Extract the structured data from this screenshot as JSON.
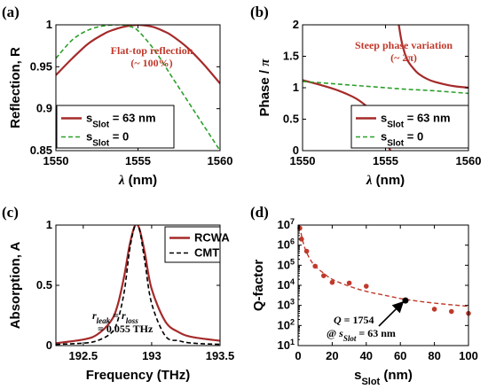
{
  "chart_data": [
    {
      "type": "line",
      "panel": "(a)",
      "xlabel_sym": "λ",
      "xlabel_unit": " (nm)",
      "ylabel": "Reflection, R",
      "xlim": [
        1550,
        1560
      ],
      "ylim": [
        0.85,
        1.0
      ],
      "xticks": [
        "1550",
        "1555",
        "1560"
      ],
      "yticks": [
        "0.85",
        "0.9",
        "0.95",
        "1"
      ],
      "annotation_lines": [
        "Flat-top reflection",
        "(~ 100%)"
      ],
      "legend": {
        "placement": "bottom-left"
      },
      "series": [
        {
          "name_main": "s",
          "name_sub": "Slot",
          "name_val": " = 63 nm",
          "color": "#a52a2a",
          "style": "solid",
          "x": [
            1550,
            1551,
            1552,
            1553,
            1553.5,
            1554,
            1554.5,
            1555,
            1555.5,
            1556,
            1556.5,
            1557,
            1558,
            1559,
            1560
          ],
          "y": [
            0.94,
            0.96,
            0.978,
            0.99,
            0.994,
            0.997,
            0.999,
            1.0,
            0.999,
            0.997,
            0.993,
            0.988,
            0.973,
            0.953,
            0.93
          ]
        },
        {
          "name_main": "s",
          "name_sub": "Slot",
          "name_val": " = 0",
          "color": "#2ca02c",
          "style": "dashed",
          "x": [
            1550,
            1551,
            1552,
            1553,
            1554,
            1554.5,
            1555,
            1556,
            1557,
            1558,
            1559,
            1560
          ],
          "y": [
            0.96,
            0.982,
            0.994,
            0.999,
            1.0,
            0.998,
            0.993,
            0.97,
            0.94,
            0.91,
            0.88,
            0.85
          ]
        }
      ]
    },
    {
      "type": "line",
      "panel": "(b)",
      "xlabel_sym": "λ",
      "xlabel_unit": " (nm)",
      "ylabel_main": "Phase / ",
      "ylabel_sym": "π",
      "xlim": [
        1550,
        1560
      ],
      "ylim": [
        0,
        2
      ],
      "xticks": [
        "1550",
        "1555",
        "1560"
      ],
      "yticks": [
        "0",
        "0.5",
        "1",
        "1.5",
        "2"
      ],
      "annotation_lines": [
        "Steep phase variation",
        "(~ 2π)"
      ],
      "legend": {
        "placement": "bottom-right"
      },
      "series": [
        {
          "name_main": "s",
          "name_sub": "Slot",
          "name_val": " = 63 nm",
          "color": "#a52a2a",
          "style": "solid",
          "x": [
            1550,
            1551,
            1552,
            1553,
            1553.5,
            1554,
            1554.5,
            1554.8,
            1555,
            1555.15,
            1555.3
          ],
          "y": [
            1.12,
            1.05,
            0.97,
            0.86,
            0.78,
            0.67,
            0.5,
            0.35,
            0.2,
            0.08,
            0.0
          ]
        },
        {
          "name_main": "s",
          "name_sub": "Slot",
          "name_val": "",
          "color": "#a52a2a",
          "style": "solid",
          "legend_hidden": true,
          "x": [
            1555.8,
            1556,
            1556.3,
            1556.7,
            1557,
            1557.5,
            1558,
            1559,
            1560
          ],
          "y": [
            2.0,
            1.7,
            1.45,
            1.3,
            1.22,
            1.14,
            1.09,
            1.03,
            1.0
          ]
        },
        {
          "name_main": "s",
          "name_sub": "Slot",
          "name_val": " = 0",
          "color": "#2ca02c",
          "style": "dashed",
          "x": [
            1550,
            1552,
            1554,
            1556,
            1558,
            1560
          ],
          "y": [
            1.1,
            1.06,
            1.02,
            0.98,
            0.95,
            0.91
          ]
        }
      ]
    },
    {
      "type": "line",
      "panel": "(c)",
      "xlabel": "Frequency (THz)",
      "ylabel": "Absorption, A",
      "xlim": [
        192.3,
        193.5
      ],
      "ylim": [
        0,
        1
      ],
      "xticks": [
        192.5,
        193,
        193.5
      ],
      "xticklabels": [
        "192.5",
        "193",
        "193.5"
      ],
      "yticks": [
        "0",
        "0.5",
        "1"
      ],
      "annotation_eq": {
        "r1": "r",
        "s1": "leak",
        "eq": " = ",
        "r2": "r",
        "s2": "loss"
      },
      "annotation_val": "= 0.055 THz",
      "legend": {
        "placement": "top-right"
      },
      "series": [
        {
          "name": "RCWA",
          "color": "#a52a2a",
          "style": "solid",
          "x": [
            192.3,
            192.5,
            192.6,
            192.7,
            192.75,
            192.8,
            192.84,
            192.88,
            192.91,
            192.95,
            193.0,
            193.1,
            193.2,
            193.3,
            193.5
          ],
          "y": [
            0.02,
            0.05,
            0.09,
            0.2,
            0.33,
            0.58,
            0.84,
            1.0,
            0.97,
            0.77,
            0.47,
            0.2,
            0.11,
            0.07,
            0.04
          ]
        },
        {
          "name": "CMT",
          "color": "#000000",
          "style": "dashed",
          "x": [
            192.3,
            192.5,
            192.6,
            192.7,
            192.75,
            192.8,
            192.84,
            192.88,
            192.91,
            192.95,
            193.0,
            193.1,
            193.2,
            193.3,
            193.5
          ],
          "y": [
            0.01,
            0.02,
            0.04,
            0.1,
            0.2,
            0.45,
            0.8,
            1.0,
            0.97,
            0.7,
            0.35,
            0.08,
            0.04,
            0.02,
            0.01
          ]
        }
      ]
    },
    {
      "type": "scatter",
      "panel": "(d)",
      "xlabel_main": "s",
      "xlabel_sub": "Slot",
      "xlabel_unit": " (nm)",
      "ylabel": "Q-factor",
      "xlim": [
        0,
        100
      ],
      "ylim_exp": [
        1,
        7
      ],
      "yscale": "log",
      "xticks": [
        "0",
        "20",
        "40",
        "60",
        "80",
        "100"
      ],
      "ytick_exps": [
        "1",
        "2",
        "3",
        "4",
        "5",
        "6",
        "7"
      ],
      "ytick_base": "10",
      "annotation_q": {
        "sym": "Q",
        "val": " = 1754"
      },
      "annotation_at": {
        "pre": "@ ",
        "sym": "s",
        "sub": "Slot",
        "post": " = 63 nm"
      },
      "highlight": {
        "x": 63,
        "y": 1754
      },
      "points": {
        "x": [
          1,
          2,
          5,
          10,
          15,
          20,
          30,
          40,
          63,
          80,
          90,
          100
        ],
        "y": [
          7000000,
          2000000,
          500000,
          90000,
          30000,
          14000,
          13000,
          9000,
          1754,
          650,
          500,
          400
        ],
        "color": "#c0392b"
      },
      "fit": {
        "x": [
          1,
          2,
          4,
          7,
          10,
          15,
          20,
          30,
          40,
          50,
          63,
          80,
          100
        ],
        "y": [
          9000000,
          3000000,
          700000,
          200000,
          90000,
          40000,
          20000,
          9000,
          5000,
          3300,
          2000,
          1300,
          900
        ],
        "color": "#c0392b"
      }
    }
  ]
}
